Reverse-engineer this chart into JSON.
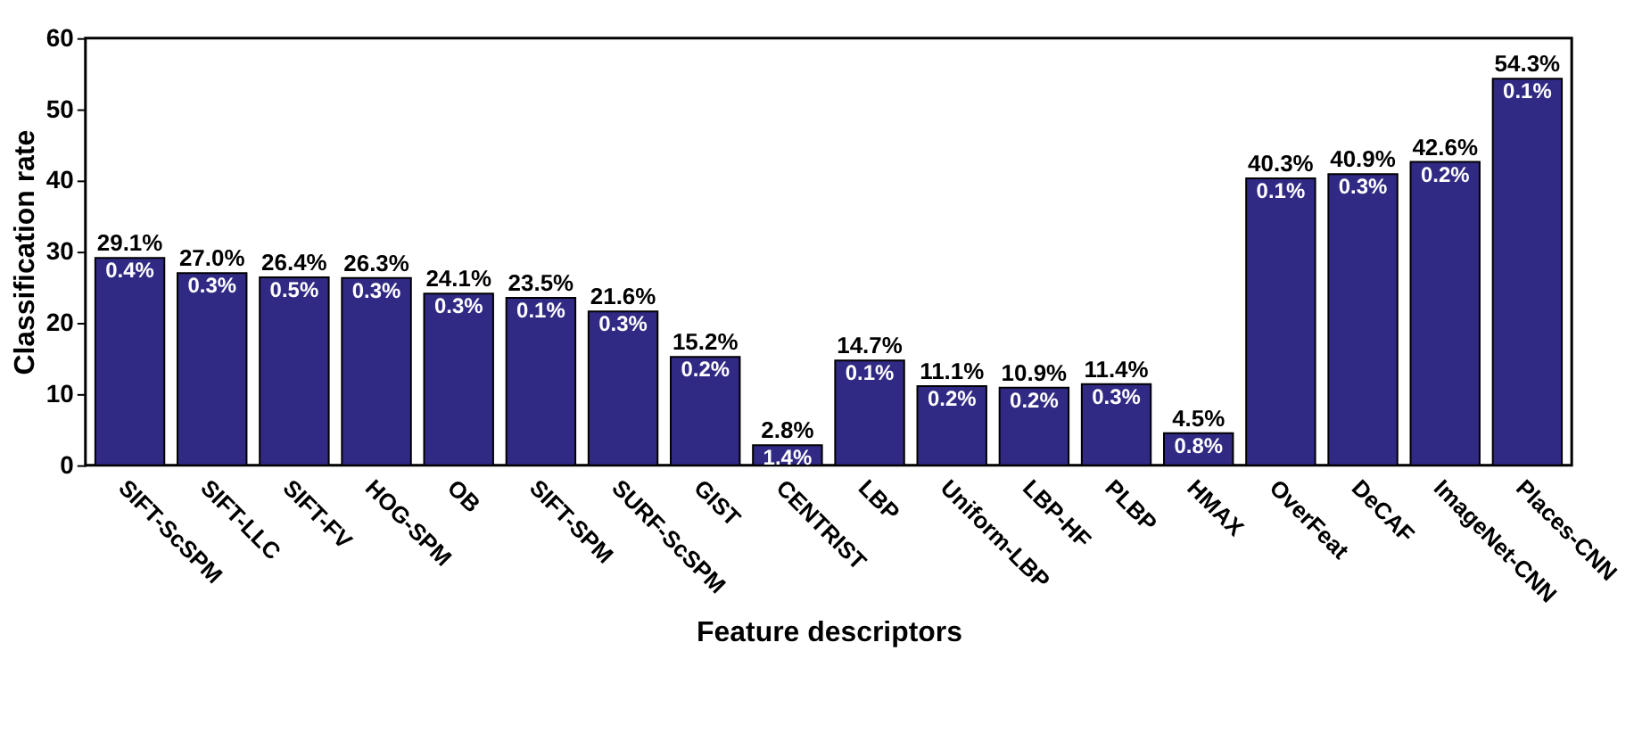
{
  "chart_data": {
    "type": "bar",
    "xlabel": "Feature descriptors",
    "ylabel": "Classification rate",
    "categories": [
      "SIFT-ScSPM",
      "SIFT-LLC",
      "SIFT-FV",
      "HOG-SPM",
      "OB",
      "SIFT-SPM",
      "SURF-ScSPM",
      "GIST",
      "CENTRIST",
      "LBP",
      "Uniform-LBP",
      "LBP-HF",
      "PLBP",
      "HMAX",
      "OverFeat",
      "DeCAF",
      "ImageNet-CNN",
      "Places-CNN"
    ],
    "values": [
      29.1,
      27.0,
      26.4,
      26.3,
      24.1,
      23.5,
      21.6,
      15.2,
      2.8,
      14.7,
      11.1,
      10.9,
      11.4,
      4.5,
      40.3,
      40.9,
      42.6,
      54.3
    ],
    "value_labels": [
      "29.1%",
      "27.0%",
      "26.4%",
      "26.3%",
      "24.1%",
      "23.5%",
      "21.6%",
      "15.2%",
      "2.8%",
      "14.7%",
      "11.1%",
      "10.9%",
      "11.4%",
      "4.5%",
      "40.3%",
      "40.9%",
      "42.6%",
      "54.3%"
    ],
    "color": "#312a84",
    "ylim": [
      0,
      60
    ],
    "yticks": [
      0,
      10,
      20,
      30,
      40,
      50,
      60
    ],
    "grid": false,
    "annotations": [
      {
        "text": "0.4%",
        "x": "SIFT-ScSPM",
        "y": 29.1
      },
      {
        "text": "0.3%",
        "x": "SIFT-LLC",
        "y": 27.0
      },
      {
        "text": "0.5%",
        "x": "SIFT-FV",
        "y": 26.4
      },
      {
        "text": "0.3%",
        "x": "HOG-SPM",
        "y": 26.3
      },
      {
        "text": "0.3%",
        "x": "OB",
        "y": 24.1
      },
      {
        "text": "0.1%",
        "x": "SIFT-SPM",
        "y": 23.5
      },
      {
        "text": "0.3%",
        "x": "SURF-ScSPM",
        "y": 21.6
      },
      {
        "text": "0.2%",
        "x": "GIST",
        "y": 15.2
      },
      {
        "text": "1.4%",
        "x": "CENTRIST",
        "y": 2.8
      },
      {
        "text": "0.1%",
        "x": "LBP",
        "y": 14.7
      },
      {
        "text": "0.2%",
        "x": "Uniform-LBP",
        "y": 11.1
      },
      {
        "text": "0.2%",
        "x": "LBP-HF",
        "y": 10.9
      },
      {
        "text": "0.3%",
        "x": "PLBP",
        "y": 11.4
      },
      {
        "text": "0.8%",
        "x": "HMAX",
        "y": 4.5
      },
      {
        "text": "0.1%",
        "x": "OverFeat",
        "y": 40.3
      },
      {
        "text": "0.3%",
        "x": "DeCAF",
        "y": 40.9
      },
      {
        "text": "0.2%",
        "x": "ImageNet-CNN",
        "y": 42.6
      },
      {
        "text": "0.1%",
        "x": "Places-CNN",
        "y": 54.3
      }
    ]
  }
}
